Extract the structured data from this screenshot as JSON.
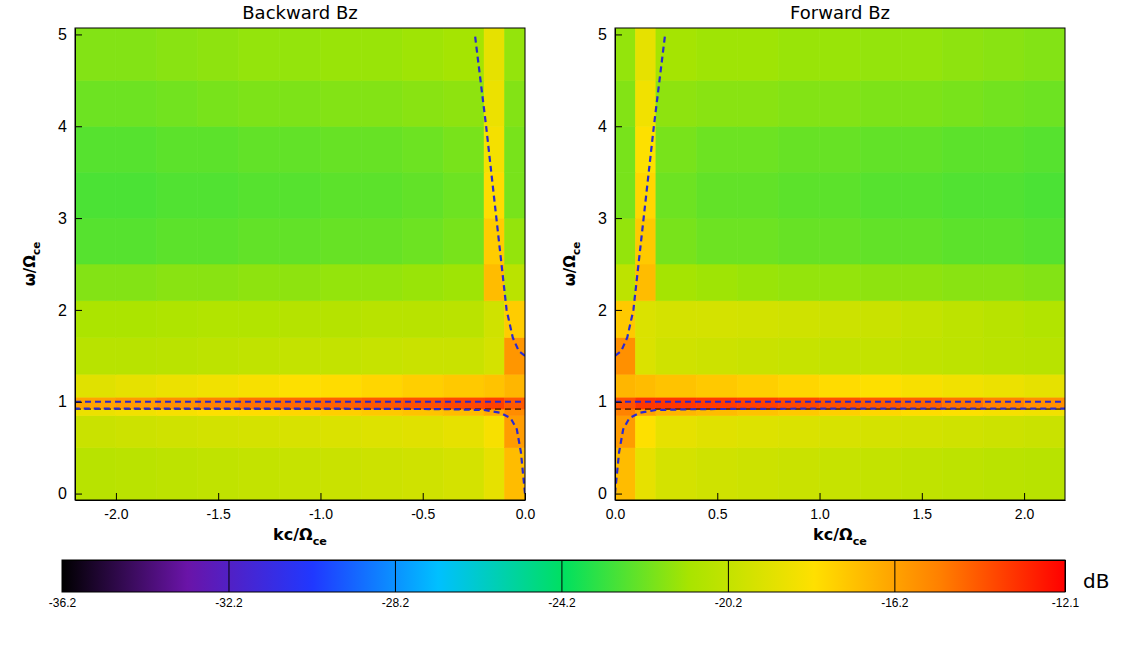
{
  "chart_data": {
    "type": "heatmap",
    "panels": [
      {
        "title": "Backward Bz",
        "x_label": {
          "text": "kc/Ω",
          "sub": "ce"
        },
        "y_label": {
          "text": "ω/Ω",
          "sub": "ce"
        },
        "xlim": [
          -2.2,
          0
        ],
        "ylim": [
          -0.07,
          5.07
        ],
        "xticks": [
          {
            "value": -2,
            "label": "-2.0"
          },
          -1.5,
          {
            "value": -1,
            "label": "-1.0"
          },
          -0.5,
          {
            "value": 0,
            "label": "0.0"
          }
        ],
        "yticks": [
          0,
          1,
          2,
          3,
          4,
          5
        ],
        "x_edges": [
          -2.2,
          -2.0,
          -1.8,
          -1.6,
          -1.4,
          -1.2,
          -1.0,
          -0.8,
          -0.6,
          -0.4,
          -0.2,
          -0.1,
          0
        ],
        "y_edges": [
          -0.07,
          0.5,
          0.85,
          0.92,
          1.05,
          1.3,
          1.7,
          2.1,
          2.5,
          3.0,
          3.5,
          4.0,
          4.5,
          5.07
        ],
        "values": [
          [
            -20.6,
            -20.5,
            -20.4,
            -20.3,
            -20.2,
            -20.1,
            -20.0,
            -19.9,
            -19.8,
            -19.6,
            -19.0,
            -17.0
          ],
          [
            -20.0,
            -19.9,
            -19.8,
            -19.7,
            -19.6,
            -19.5,
            -19.4,
            -19.3,
            -19.2,
            -19.0,
            -18.4,
            -16.0
          ],
          [
            -18.8,
            -18.6,
            -18.4,
            -18.2,
            -18.0,
            -17.8,
            -17.6,
            -17.4,
            -17.2,
            -17.0,
            -16.5,
            -15.5
          ],
          [
            -16.2,
            -16.0,
            -15.6,
            -15.2,
            -14.8,
            -14.6,
            -14.4,
            -14.2,
            -14.0,
            -13.8,
            -13.6,
            -14.2
          ],
          [
            -19.2,
            -19.0,
            -18.8,
            -18.6,
            -18.4,
            -18.2,
            -18.0,
            -17.8,
            -17.6,
            -17.4,
            -17.2,
            -16.8
          ],
          [
            -20.6,
            -20.6,
            -20.5,
            -20.4,
            -20.3,
            -20.2,
            -20.2,
            -20.1,
            -20.0,
            -20.0,
            -19.6,
            -15.8
          ],
          [
            -21.0,
            -21.0,
            -20.9,
            -20.8,
            -20.8,
            -20.7,
            -20.7,
            -20.6,
            -20.6,
            -20.5,
            -19.8,
            -17.5
          ],
          [
            -21.8,
            -21.8,
            -21.7,
            -21.7,
            -21.6,
            -21.6,
            -21.5,
            -21.5,
            -21.4,
            -21.3,
            -17.0,
            -20.5
          ],
          [
            -22.6,
            -22.6,
            -22.5,
            -22.5,
            -22.4,
            -22.4,
            -22.3,
            -22.3,
            -22.2,
            -22.0,
            -17.5,
            -21.5
          ],
          [
            -22.8,
            -22.8,
            -22.7,
            -22.7,
            -22.6,
            -22.6,
            -22.5,
            -22.5,
            -22.4,
            -22.2,
            -18.0,
            -22.0
          ],
          [
            -22.6,
            -22.6,
            -22.5,
            -22.5,
            -22.4,
            -22.4,
            -22.3,
            -22.3,
            -22.2,
            -22.0,
            -18.5,
            -22.0
          ],
          [
            -22.2,
            -22.2,
            -22.1,
            -22.0,
            -21.9,
            -21.9,
            -21.8,
            -21.8,
            -21.7,
            -21.6,
            -18.8,
            -21.8
          ],
          [
            -21.8,
            -21.8,
            -21.7,
            -21.6,
            -21.5,
            -21.5,
            -21.4,
            -21.4,
            -21.3,
            -21.2,
            -19.0,
            -21.5
          ]
        ],
        "lines": [
          {
            "x": [
              -2.2,
              0
            ],
            "y": [
              0.92,
              0.92
            ],
            "color": "#000000",
            "line_style": "dashed"
          },
          {
            "x": [
              -2.2,
              0
            ],
            "y": [
              1,
              1
            ],
            "color": "#2a2ad0",
            "line_style": "dashed"
          },
          {
            "x": [
              0,
              -0.02,
              -0.04,
              -0.07,
              -0.12,
              -0.2,
              -0.4,
              -1.0,
              -2.2
            ],
            "y": [
              0,
              0.45,
              0.7,
              0.82,
              0.88,
              0.91,
              0.92,
              0.925,
              0.925
            ],
            "color": "#2a2ad0",
            "line_style": "dashed"
          },
          {
            "x": [
              0,
              -0.03,
              -0.06,
              -0.09,
              -0.14,
              -0.19,
              -0.245
            ],
            "y": [
              1.5,
              1.55,
              1.7,
              2.0,
              3.0,
              4.0,
              5.0
            ],
            "color": "#2a2ad0",
            "line_style": "dashed"
          }
        ]
      },
      {
        "title": "Forward Bz",
        "x_label": {
          "text": "kc/Ω",
          "sub": "ce"
        },
        "y_label": {
          "text": "ω/Ω",
          "sub": "ce"
        },
        "xlim": [
          0,
          2.2
        ],
        "ylim": [
          -0.07,
          5.07
        ],
        "xticks": [
          {
            "value": 0,
            "label": "0.0"
          },
          0.5,
          {
            "value": 1,
            "label": "1.0"
          },
          1.5,
          {
            "value": 2,
            "label": "2.0"
          }
        ],
        "yticks": [
          0,
          1,
          2,
          3,
          4,
          5
        ],
        "x_edges": [
          0,
          0.1,
          0.2,
          0.4,
          0.6,
          0.8,
          1.0,
          1.2,
          1.4,
          1.6,
          1.8,
          2.0,
          2.2
        ],
        "y_edges": [
          -0.07,
          0.5,
          0.85,
          0.92,
          1.05,
          1.3,
          1.7,
          2.1,
          2.5,
          3.0,
          3.5,
          4.0,
          4.5,
          5.07
        ],
        "values": [
          [
            -17.0,
            -19.0,
            -19.6,
            -19.8,
            -19.9,
            -20.0,
            -20.1,
            -20.2,
            -20.3,
            -20.4,
            -20.5,
            -20.6
          ],
          [
            -16.0,
            -18.2,
            -19.0,
            -19.2,
            -19.3,
            -19.4,
            -19.5,
            -19.6,
            -19.7,
            -19.8,
            -19.9,
            -20.0
          ],
          [
            -15.2,
            -16.2,
            -16.8,
            -17.0,
            -17.2,
            -17.4,
            -17.6,
            -17.8,
            -18.0,
            -18.2,
            -18.4,
            -18.6
          ],
          [
            -14.0,
            -13.4,
            -13.4,
            -13.5,
            -13.6,
            -13.8,
            -14.0,
            -14.2,
            -14.4,
            -14.8,
            -15.2,
            -15.6
          ],
          [
            -16.8,
            -17.0,
            -17.2,
            -17.4,
            -17.6,
            -17.8,
            -18.0,
            -18.2,
            -18.4,
            -18.6,
            -18.8,
            -19.0
          ],
          [
            -15.6,
            -19.4,
            -19.8,
            -19.9,
            -20.0,
            -20.1,
            -20.2,
            -20.2,
            -20.3,
            -20.4,
            -20.5,
            -20.6
          ],
          [
            -17.4,
            -19.4,
            -19.6,
            -19.6,
            -19.7,
            -19.8,
            -19.9,
            -20.0,
            -20.2,
            -20.4,
            -20.6,
            -20.8
          ],
          [
            -20.4,
            -17.0,
            -21.2,
            -21.3,
            -21.4,
            -21.5,
            -21.5,
            -21.6,
            -21.6,
            -21.7,
            -21.7,
            -21.8
          ],
          [
            -21.5,
            -17.4,
            -22.0,
            -22.2,
            -22.2,
            -22.3,
            -22.3,
            -22.4,
            -22.4,
            -22.5,
            -22.5,
            -22.6
          ],
          [
            -22.0,
            -17.8,
            -22.2,
            -22.4,
            -22.4,
            -22.5,
            -22.5,
            -22.6,
            -22.6,
            -22.7,
            -22.7,
            -22.8
          ],
          [
            -22.0,
            -18.2,
            -22.0,
            -22.2,
            -22.2,
            -22.3,
            -22.3,
            -22.4,
            -22.4,
            -22.5,
            -22.5,
            -22.6
          ],
          [
            -21.8,
            -18.6,
            -21.6,
            -21.7,
            -21.7,
            -21.8,
            -21.8,
            -21.9,
            -21.9,
            -22.0,
            -22.1,
            -22.2
          ],
          [
            -21.5,
            -19.0,
            -21.2,
            -21.3,
            -21.3,
            -21.4,
            -21.4,
            -21.5,
            -21.5,
            -21.6,
            -21.7,
            -21.8
          ]
        ],
        "lines": [
          {
            "x": [
              0,
              2.2
            ],
            "y": [
              0.92,
              0.92
            ],
            "color": "#000000",
            "line_style": "dashed"
          },
          {
            "x": [
              0,
              2.2
            ],
            "y": [
              1,
              1
            ],
            "color": "#2a2ad0",
            "line_style": "dashed"
          },
          {
            "x": [
              0,
              0.02,
              0.04,
              0.07,
              0.12,
              0.2,
              0.4,
              1.0,
              2.2
            ],
            "y": [
              0,
              0.45,
              0.7,
              0.82,
              0.88,
              0.91,
              0.92,
              0.925,
              0.925
            ],
            "color": "#2a2ad0",
            "line_style": "dashed"
          },
          {
            "x": [
              0,
              0.03,
              0.06,
              0.09,
              0.14,
              0.19,
              0.245
            ],
            "y": [
              1.5,
              1.55,
              1.7,
              2.0,
              3.0,
              4.0,
              5.0
            ],
            "color": "#2a2ad0",
            "line_style": "dashed"
          }
        ]
      }
    ],
    "colorbar": {
      "label": "dB",
      "range": [
        -36.2,
        -12.1
      ],
      "ticks": [
        -36.2,
        -32.2,
        -28.2,
        -24.2,
        -20.2,
        -16.2,
        -12.1
      ]
    }
  }
}
